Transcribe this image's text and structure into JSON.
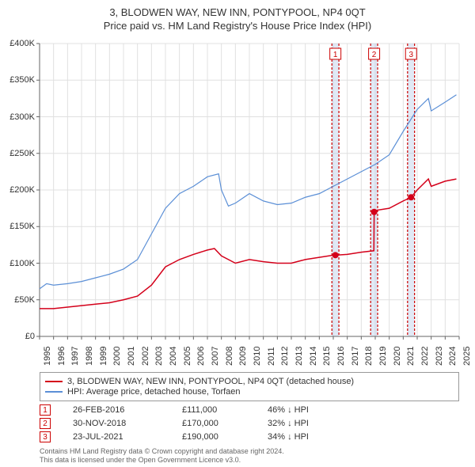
{
  "title": "3, BLODWEN WAY, NEW INN, PONTYPOOL, NP4 0QT",
  "subtitle": "Price paid vs. HM Land Registry's House Price Index (HPI)",
  "chart": {
    "type": "line",
    "background_color": "#ffffff",
    "grid_color": "#e0e0e0",
    "axis_color": "#666666",
    "xlim": [
      1995,
      2025
    ],
    "ylim": [
      0,
      400000
    ],
    "ytick_step": 50000,
    "ytick_labels": [
      "£0",
      "£50K",
      "£100K",
      "£150K",
      "£200K",
      "£250K",
      "£300K",
      "£350K",
      "£400K"
    ],
    "xtick_step": 1,
    "xtick_labels": [
      "1995",
      "1996",
      "1997",
      "1998",
      "1999",
      "2000",
      "2001",
      "2002",
      "2003",
      "2004",
      "2005",
      "2006",
      "2007",
      "2008",
      "2009",
      "2010",
      "2011",
      "2012",
      "2013",
      "2014",
      "2015",
      "2016",
      "2017",
      "2018",
      "2019",
      "2020",
      "2021",
      "2022",
      "2023",
      "2024",
      "2025"
    ],
    "series": [
      {
        "name": "property",
        "label": "3, BLODWEN WAY, NEW INN, PONTYPOOL, NP4 0QT (detached house)",
        "color": "#d4001a",
        "line_width": 1.5,
        "data": [
          [
            1995,
            38000
          ],
          [
            1996,
            38000
          ],
          [
            1997,
            40000
          ],
          [
            1998,
            42000
          ],
          [
            1999,
            44000
          ],
          [
            2000,
            46000
          ],
          [
            2001,
            50000
          ],
          [
            2002,
            55000
          ],
          [
            2003,
            70000
          ],
          [
            2004,
            95000
          ],
          [
            2005,
            105000
          ],
          [
            2006,
            112000
          ],
          [
            2007,
            118000
          ],
          [
            2007.5,
            120000
          ],
          [
            2008,
            110000
          ],
          [
            2009,
            100000
          ],
          [
            2010,
            105000
          ],
          [
            2011,
            102000
          ],
          [
            2012,
            100000
          ],
          [
            2013,
            100000
          ],
          [
            2014,
            105000
          ],
          [
            2015,
            108000
          ],
          [
            2016,
            111000
          ],
          [
            2016.15,
            111000
          ],
          [
            2017,
            112000
          ],
          [
            2018,
            115000
          ],
          [
            2018.9,
            117000
          ],
          [
            2018.92,
            170000
          ],
          [
            2019,
            172000
          ],
          [
            2020,
            175000
          ],
          [
            2021,
            185000
          ],
          [
            2021.56,
            190000
          ],
          [
            2022,
            200000
          ],
          [
            2022.8,
            215000
          ],
          [
            2023,
            205000
          ],
          [
            2024,
            212000
          ],
          [
            2024.8,
            215000
          ]
        ],
        "markers": [
          {
            "x": 2016.15,
            "y": 111000
          },
          {
            "x": 2018.92,
            "y": 170000
          },
          {
            "x": 2021.56,
            "y": 190000
          }
        ],
        "marker_color": "#d4001a",
        "marker_size": 4
      },
      {
        "name": "hpi",
        "label": "HPI: Average price, detached house, Torfaen",
        "color": "#5b8fd6",
        "line_width": 1.2,
        "data": [
          [
            1995,
            65000
          ],
          [
            1995.5,
            72000
          ],
          [
            1996,
            70000
          ],
          [
            1997,
            72000
          ],
          [
            1998,
            75000
          ],
          [
            1999,
            80000
          ],
          [
            2000,
            85000
          ],
          [
            2001,
            92000
          ],
          [
            2002,
            105000
          ],
          [
            2003,
            140000
          ],
          [
            2004,
            175000
          ],
          [
            2005,
            195000
          ],
          [
            2006,
            205000
          ],
          [
            2007,
            218000
          ],
          [
            2007.8,
            222000
          ],
          [
            2008,
            200000
          ],
          [
            2008.5,
            178000
          ],
          [
            2009,
            182000
          ],
          [
            2010,
            195000
          ],
          [
            2011,
            185000
          ],
          [
            2012,
            180000
          ],
          [
            2013,
            182000
          ],
          [
            2014,
            190000
          ],
          [
            2015,
            195000
          ],
          [
            2016,
            205000
          ],
          [
            2017,
            215000
          ],
          [
            2018,
            225000
          ],
          [
            2019,
            235000
          ],
          [
            2020,
            248000
          ],
          [
            2021,
            280000
          ],
          [
            2022,
            310000
          ],
          [
            2022.8,
            325000
          ],
          [
            2023,
            308000
          ],
          [
            2024,
            320000
          ],
          [
            2024.8,
            330000
          ]
        ]
      }
    ],
    "bands": [
      {
        "x_center": 2016.15,
        "label": "1",
        "color": "rgba(180,200,230,0.4)",
        "border": "#cc0000"
      },
      {
        "x_center": 2018.92,
        "label": "2",
        "color": "rgba(180,200,230,0.4)",
        "border": "#cc0000"
      },
      {
        "x_center": 2021.56,
        "label": "3",
        "color": "rgba(180,200,230,0.4)",
        "border": "#cc0000"
      }
    ],
    "band_width_years": 0.5
  },
  "legend": {
    "border_color": "#999999",
    "items": [
      {
        "color": "#d4001a",
        "label": "3, BLODWEN WAY, NEW INN, PONTYPOOL, NP4 0QT (detached house)"
      },
      {
        "color": "#5b8fd6",
        "label": "HPI: Average price, detached house, Torfaen"
      }
    ]
  },
  "events": [
    {
      "num": "1",
      "date": "26-FEB-2016",
      "price": "£111,000",
      "diff": "46% ↓ HPI",
      "border": "#cc0000"
    },
    {
      "num": "2",
      "date": "30-NOV-2018",
      "price": "£170,000",
      "diff": "32% ↓ HPI",
      "border": "#cc0000"
    },
    {
      "num": "3",
      "date": "23-JUL-2021",
      "price": "£190,000",
      "diff": "34% ↓ HPI",
      "border": "#cc0000"
    }
  ],
  "footer_line1": "Contains HM Land Registry data © Crown copyright and database right 2024.",
  "footer_line2": "This data is licensed under the Open Government Licence v3.0."
}
